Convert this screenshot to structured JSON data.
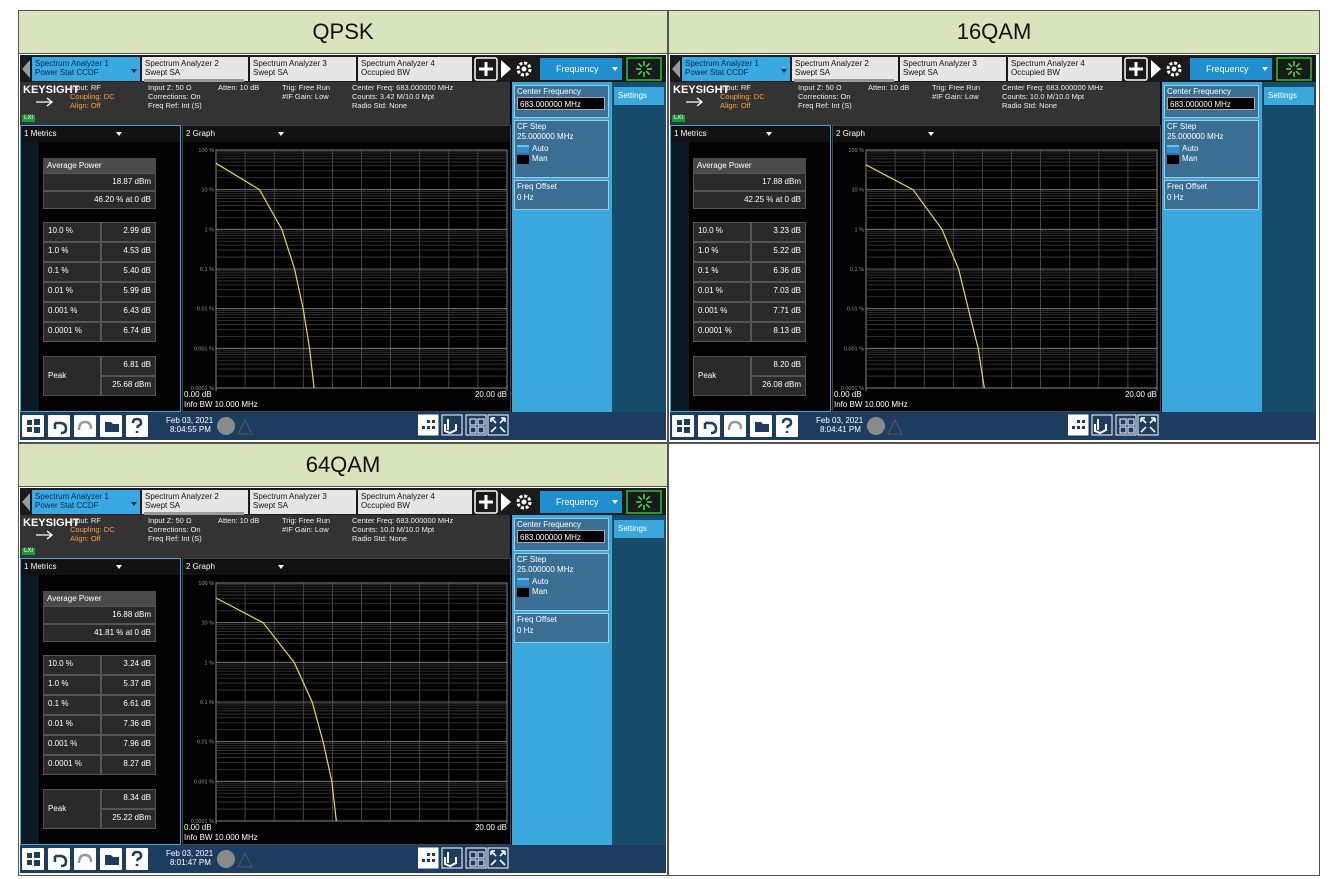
{
  "table": {
    "cells": [
      {
        "title": "QPSK",
        "screen": {
          "counts": "Counts: 3.42 M/10.0 Mpt",
          "average_power": "18.87 dBm",
          "average_percent": {
            "value": 46.2,
            "label": "46.20 % at 0 dB"
          },
          "values": [
            {
              "value": 2.99,
              "label": "2.99 dB"
            },
            {
              "value": 4.53,
              "label": "4.53 dB"
            },
            {
              "value": 5.4,
              "label": "5.40 dB"
            },
            {
              "value": 5.99,
              "label": "5.99 dB"
            },
            {
              "value": 6.43,
              "label": "6.43 dB"
            },
            {
              "value": 6.74,
              "label": "6.74 dB"
            }
          ],
          "peak_db": "6.81 dB",
          "peak_dbm": "25.68 dBm",
          "date": "Feb 03, 2021",
          "time": "8:04:55 PM"
        }
      },
      {
        "title": "16QAM",
        "screen": {
          "counts": "Counts: 10.0 M/10.0 Mpt",
          "average_power": "17.88 dBm",
          "average_percent": {
            "value": 42.25,
            "label": "42.25 % at 0 dB"
          },
          "values": [
            {
              "value": 3.23,
              "label": "3.23 dB"
            },
            {
              "value": 5.22,
              "label": "5.22 dB"
            },
            {
              "value": 6.36,
              "label": "6.36 dB"
            },
            {
              "value": 7.03,
              "label": "7.03 dB"
            },
            {
              "value": 7.71,
              "label": "7.71 dB"
            },
            {
              "value": 8.13,
              "label": "8.13 dB"
            }
          ],
          "peak_db": "8.20 dB",
          "peak_dbm": "26.08 dBm",
          "date": "Feb 03, 2021",
          "time": "8:04:41 PM"
        }
      },
      {
        "title": "64QAM",
        "screen": {
          "counts": "Counts: 10.0 M/10.0 Mpt",
          "average_power": "16.88 dBm",
          "average_percent": {
            "value": 41.81,
            "label": "41.81 % at 0 dB"
          },
          "values": [
            {
              "value": 3.24,
              "label": "3.24 dB"
            },
            {
              "value": 5.37,
              "label": "5.37 dB"
            },
            {
              "value": 6.61,
              "label": "6.61 dB"
            },
            {
              "value": 7.36,
              "label": "7.36 dB"
            },
            {
              "value": 7.96,
              "label": "7.96 dB"
            },
            {
              "value": 8.27,
              "label": "8.27 dB"
            }
          ],
          "peak_db": "8.34 dB",
          "peak_dbm": "25.22 dBm",
          "date": "Feb 03, 2021",
          "time": "8:01:47 PM"
        }
      }
    ]
  },
  "analyzer": {
    "tabs": [
      {
        "name": "Spectrum Analyzer 1",
        "mode": "Power Stat CCDF"
      },
      {
        "name": "Spectrum Analyzer 2",
        "mode": "Swept SA"
      },
      {
        "name": "Spectrum Analyzer 3",
        "mode": "Swept SA"
      },
      {
        "name": "Spectrum Analyzer 4",
        "mode": "Occupied BW"
      }
    ],
    "menu": "Frequency",
    "brand": "KEYSIGHT",
    "lxi": "LXI",
    "info": [
      [
        "Input: RF",
        "Coupling: DC",
        "Align: Off"
      ],
      [
        "Input Z: 50 Ω",
        "Corrections: On",
        "Freq Ref: Int (S)"
      ],
      [
        "Atten: 10 dB"
      ],
      [
        "Trig: Free Run",
        "#IF Gain: Low"
      ]
    ],
    "center_freq": "Center Freq: 683.000000 MHz",
    "radio_std": "Radio Std: None",
    "softkeys": {
      "center_frequency": "Center Frequency",
      "center_value": "683.000000 MHz",
      "cf_step": "CF Step",
      "cf_step_value": "25.000000 MHz",
      "auto": "Auto",
      "man": "Man",
      "freq_offset": "Freq Offset",
      "freq_offset_value": "0 Hz"
    },
    "settings": "Settings",
    "metrics_window": "1 Metrics",
    "graph_window": "2 Graph",
    "average_power": "Average Power",
    "peak": "Peak",
    "levels": [
      {
        "value": 10,
        "label": "10.0 %"
      },
      {
        "value": 1,
        "label": "1.0 %"
      },
      {
        "value": 0.1,
        "label": "0.1 %"
      },
      {
        "value": 0.01,
        "label": "0.01 %"
      },
      {
        "value": 0.001,
        "label": "0.001 %"
      },
      {
        "value": 0.0001,
        "label": "0.0001 %"
      }
    ],
    "yticks": [
      {
        "value": 100,
        "label": "100 %"
      },
      {
        "value": 10,
        "label": "10 %"
      },
      {
        "value": 1,
        "label": "1 %"
      },
      {
        "value": 0.1,
        "label": "0.1 %"
      },
      {
        "value": 0.01,
        "label": "0.01 %"
      },
      {
        "value": 0.001,
        "label": "0.001 %"
      },
      {
        "value": 0.0001,
        "label": "0.0001 %"
      }
    ],
    "xticks": [
      {
        "value": 0,
        "label": "0.00 dB"
      },
      {
        "value": 20,
        "label": "20.00 dB"
      }
    ],
    "info_bw": "Info BW 10.000 MHz",
    "curve_color": "#e4dc3c"
  }
}
